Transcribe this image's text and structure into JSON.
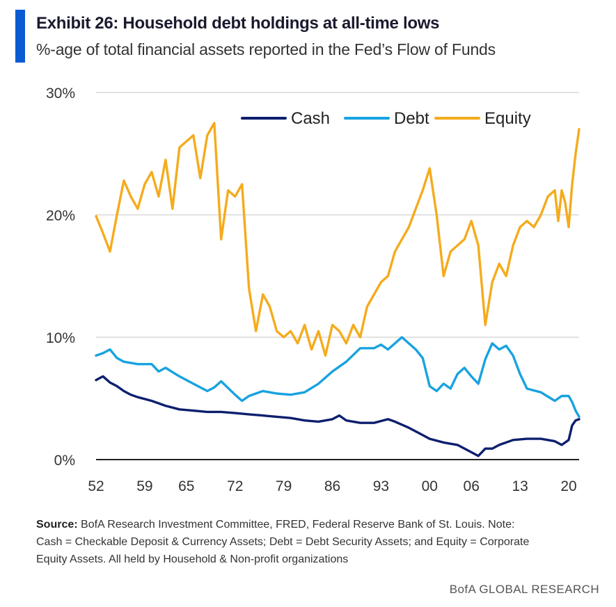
{
  "header": {
    "title": "Exhibit 26: Household debt holdings at all-time lows",
    "subtitle": "%-age of total financial assets reported in the Fed’s Flow of Funds"
  },
  "footer": {
    "source_label": "Source:",
    "source_line1": "BofA Research Investment Committee, FRED, Federal Reserve Bank of St. Louis. Note:",
    "source_line2": "Cash = Checkable Deposit  & Currency Assets; Debt = Debt Security Assets; and Equity = Corporate",
    "source_line3": "Equity Assets. All held by Household  & Non-profit organizations",
    "brand": "BofA GLOBAL RESEARCH"
  },
  "colors": {
    "accent": "#0a5bd3",
    "cash": "#0d1f6e",
    "debt": "#18a2e0",
    "equity": "#f5ab1c",
    "grid": "#d9d9d9",
    "axis": "#222222"
  },
  "chart_data": {
    "type": "line",
    "title": "Exhibit 26: Household debt holdings at all-time lows",
    "xlabel": "",
    "ylabel": "",
    "xlim": [
      1952,
      2021.5
    ],
    "ylim": [
      0,
      30
    ],
    "grid": true,
    "legend_position": "top-right",
    "x_tick_values": [
      1952,
      1959,
      1965,
      1972,
      1979,
      1986,
      1993,
      2000,
      2006,
      2013,
      2020
    ],
    "x_tick_labels": [
      "52",
      "59",
      "65",
      "72",
      "79",
      "86",
      "93",
      "00",
      "06",
      "13",
      "20"
    ],
    "y_tick_values": [
      0,
      10,
      20,
      30
    ],
    "y_tick_labels": [
      "0%",
      "10%",
      "20%",
      "30%"
    ],
    "series": [
      {
        "name": "Cash",
        "color": "#0d1f6e",
        "x": [
          1952,
          1953,
          1954,
          1955,
          1956,
          1957,
          1958,
          1960,
          1962,
          1964,
          1966,
          1968,
          1970,
          1972,
          1974,
          1976,
          1978,
          1980,
          1982,
          1984,
          1986,
          1987,
          1988,
          1990,
          1992,
          1994,
          1995,
          1997,
          1999,
          2000,
          2002,
          2004,
          2006,
          2007,
          2008,
          2009,
          2010,
          2012,
          2014,
          2016,
          2018,
          2019,
          2020,
          2020.5,
          2021,
          2021.5
        ],
        "y": [
          6.5,
          6.8,
          6.3,
          6.0,
          5.6,
          5.3,
          5.1,
          4.8,
          4.4,
          4.1,
          4.0,
          3.9,
          3.9,
          3.8,
          3.7,
          3.6,
          3.5,
          3.4,
          3.2,
          3.1,
          3.3,
          3.6,
          3.2,
          3.0,
          3.0,
          3.3,
          3.1,
          2.6,
          2.0,
          1.7,
          1.4,
          1.2,
          0.6,
          0.3,
          0.9,
          0.9,
          1.2,
          1.6,
          1.7,
          1.7,
          1.5,
          1.2,
          1.6,
          2.8,
          3.2,
          3.3
        ]
      },
      {
        "name": "Debt",
        "color": "#18a2e0",
        "x": [
          1952,
          1953,
          1954,
          1955,
          1956,
          1958,
          1960,
          1961,
          1962,
          1964,
          1966,
          1968,
          1969,
          1970,
          1972,
          1973,
          1974,
          1976,
          1978,
          1980,
          1982,
          1984,
          1986,
          1988,
          1990,
          1992,
          1993,
          1994,
          1995,
          1996,
          1998,
          1999,
          2000,
          2001,
          2002,
          2003,
          2004,
          2005,
          2006,
          2007,
          2008,
          2009,
          2010,
          2011,
          2012,
          2013,
          2014,
          2016,
          2018,
          2019,
          2020,
          2020.5,
          2021,
          2021.5
        ],
        "y": [
          8.5,
          8.7,
          9.0,
          8.3,
          8.0,
          7.8,
          7.8,
          7.2,
          7.5,
          6.8,
          6.2,
          5.6,
          5.9,
          6.4,
          5.3,
          4.8,
          5.2,
          5.6,
          5.4,
          5.3,
          5.5,
          6.2,
          7.2,
          8.0,
          9.1,
          9.1,
          9.4,
          9.0,
          9.5,
          10.0,
          9.0,
          8.3,
          6.0,
          5.6,
          6.2,
          5.8,
          7.0,
          7.5,
          6.8,
          6.2,
          8.2,
          9.5,
          9.0,
          9.3,
          8.5,
          7.0,
          5.8,
          5.5,
          4.8,
          5.2,
          5.2,
          4.7,
          4.0,
          3.5
        ]
      },
      {
        "name": "Equity",
        "color": "#f5ab1c",
        "x": [
          1952,
          1953,
          1954,
          1955,
          1956,
          1957,
          1958,
          1959,
          1960,
          1961,
          1962,
          1963,
          1964,
          1965,
          1966,
          1967,
          1968,
          1969,
          1970,
          1971,
          1972,
          1973,
          1974,
          1975,
          1976,
          1977,
          1978,
          1979,
          1980,
          1981,
          1982,
          1983,
          1984,
          1985,
          1986,
          1987,
          1988,
          1989,
          1990,
          1991,
          1992,
          1993,
          1994,
          1995,
          1996,
          1997,
          1998,
          1999,
          2000,
          2001,
          2002,
          2003,
          2004,
          2005,
          2006,
          2007,
          2008,
          2009,
          2010,
          2011,
          2012,
          2013,
          2014,
          2015,
          2016,
          2017,
          2018,
          2018.5,
          2019,
          2019.5,
          2020,
          2020.5,
          2021,
          2021.5
        ],
        "y": [
          19.9,
          18.5,
          17.0,
          20.0,
          22.8,
          21.5,
          20.5,
          22.5,
          23.5,
          21.5,
          24.5,
          20.5,
          25.5,
          26.0,
          26.5,
          23.0,
          26.5,
          27.5,
          18.0,
          22.0,
          21.5,
          22.5,
          14.0,
          10.5,
          13.5,
          12.5,
          10.5,
          10.0,
          10.5,
          9.5,
          11.0,
          9.0,
          10.5,
          8.5,
          11.0,
          10.5,
          9.5,
          11.0,
          10.0,
          12.5,
          13.5,
          14.5,
          15.0,
          17.0,
          18.0,
          19.0,
          20.5,
          22.0,
          23.8,
          20.0,
          15.0,
          17.0,
          17.5,
          18.0,
          19.5,
          17.5,
          11.0,
          14.5,
          16.0,
          15.0,
          17.5,
          19.0,
          19.5,
          19.0,
          20.0,
          21.5,
          22.0,
          19.5,
          22.0,
          21.0,
          19.0,
          22.5,
          25.0,
          27.0
        ]
      }
    ]
  }
}
